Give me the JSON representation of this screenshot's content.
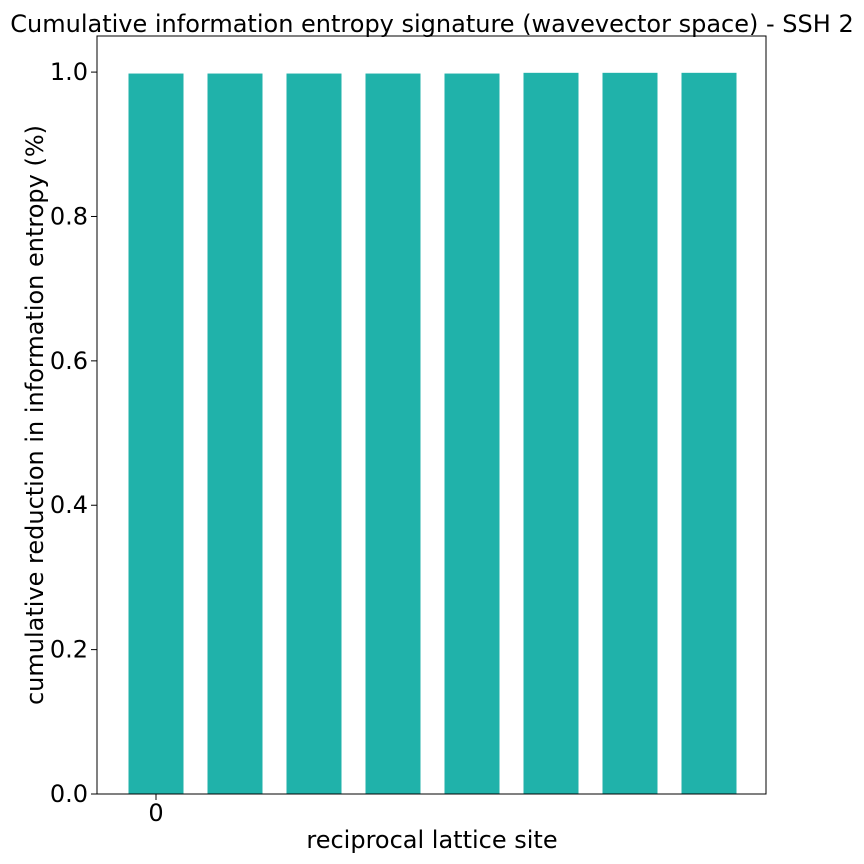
{
  "chart_data": {
    "type": "bar",
    "title": "Cumulative information entropy signature (wavevector space) - SSH 2",
    "xlabel": "reciprocal lattice site",
    "ylabel": "cumulative reduction in information entropy (%)",
    "categories": [
      "0",
      "",
      "",
      "",
      "",
      "",
      "",
      ""
    ],
    "values": [
      0.998,
      0.998,
      0.998,
      0.998,
      0.998,
      0.999,
      0.999,
      0.999
    ],
    "ylim": [
      0,
      1.05
    ],
    "yticks": [
      0.0,
      0.2,
      0.4,
      0.6,
      0.8,
      1.0
    ],
    "ytick_labels": [
      "0.0",
      "0.2",
      "0.4",
      "0.6",
      "0.8",
      "1.0"
    ],
    "xtick_labels": [
      "0"
    ],
    "bar_color": "#20b2aa",
    "grid": false,
    "legend": false
  }
}
